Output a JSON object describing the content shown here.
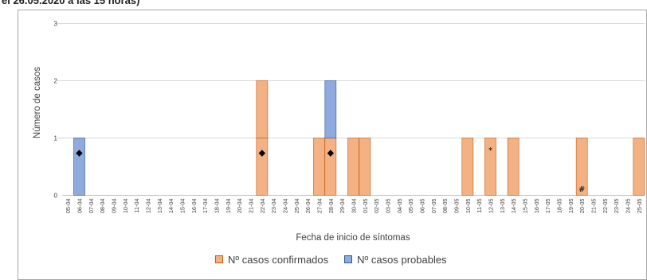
{
  "caption": "el 26.05.2020 a las 15 horas)",
  "chart_data": {
    "type": "bar",
    "stacked": true,
    "ylabel": "Número de casos",
    "xlabel": "Fecha de inicio de síntomas",
    "ylim": [
      0,
      3
    ],
    "yticks": [
      0,
      1,
      2,
      3
    ],
    "grid": true,
    "legend_position": "bottom",
    "categories": [
      "05-04",
      "06-04",
      "07-04",
      "08-04",
      "09-04",
      "10-04",
      "11-04",
      "12-04",
      "13-04",
      "14-04",
      "15-04",
      "16-04",
      "17-04",
      "18-04",
      "19-04",
      "20-04",
      "21-04",
      "22-04",
      "23-04",
      "24-04",
      "25-04",
      "26-04",
      "27-04",
      "28-04",
      "29-04",
      "30-04",
      "01-05",
      "02-05",
      "03-05",
      "04-05",
      "05-05",
      "06-05",
      "07-05",
      "08-05",
      "09-05",
      "10-05",
      "11-05",
      "12-05",
      "13-05",
      "14-05",
      "15-05",
      "16-05",
      "17-05",
      "18-05",
      "19-05",
      "20-05",
      "21-05",
      "22-05",
      "23-05",
      "24-05",
      "25-05"
    ],
    "series": [
      {
        "name": "Nº casos confirmados",
        "color": "#f4b183",
        "stroke": "#c55a11",
        "values": [
          0,
          0,
          0,
          0,
          0,
          0,
          0,
          0,
          0,
          0,
          0,
          0,
          0,
          0,
          0,
          0,
          0,
          2,
          0,
          0,
          0,
          0,
          1,
          1,
          0,
          1,
          1,
          0,
          0,
          0,
          0,
          0,
          0,
          0,
          0,
          1,
          0,
          1,
          0,
          1,
          0,
          0,
          0,
          0,
          0,
          1,
          0,
          0,
          0,
          0,
          1
        ]
      },
      {
        "name": "Nº casos probables",
        "color": "#8faadc",
        "stroke": "#2f5597",
        "values": [
          0,
          1,
          0,
          0,
          0,
          0,
          0,
          0,
          0,
          0,
          0,
          0,
          0,
          0,
          0,
          0,
          0,
          0,
          0,
          0,
          0,
          0,
          0,
          1,
          0,
          0,
          0,
          0,
          0,
          0,
          0,
          0,
          0,
          0,
          0,
          0,
          0,
          0,
          0,
          0,
          0,
          0,
          0,
          0,
          0,
          0,
          0,
          0,
          0,
          0,
          0
        ]
      }
    ],
    "annotations": [
      {
        "category": "06-04",
        "value": 0.75,
        "symbol": "◆"
      },
      {
        "category": "22-04",
        "value": 0.75,
        "symbol": "◆"
      },
      {
        "category": "28-04",
        "value": 0.75,
        "symbol": "◆"
      },
      {
        "category": "12-05",
        "value": 0.8,
        "symbol": "*"
      },
      {
        "category": "20-05",
        "value": 0.12,
        "symbol": "#"
      }
    ]
  }
}
